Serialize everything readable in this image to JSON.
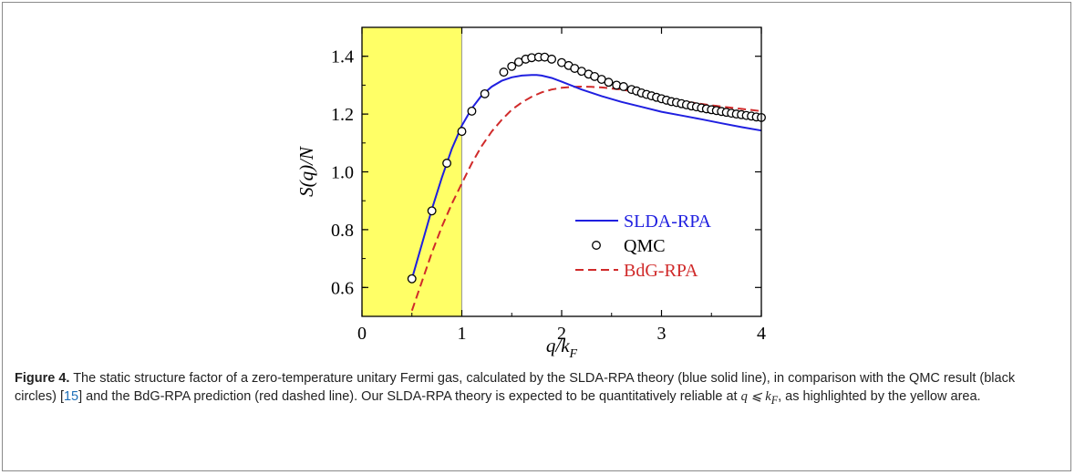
{
  "chart_data": {
    "type": "line",
    "xlabel_main": "q/k",
    "xlabel_sub": "F",
    "ylabel_pre": "S(q)",
    "ylabel_post": "/N",
    "xlim": [
      0,
      4
    ],
    "ylim": [
      0.5,
      1.5
    ],
    "xticks": [
      0,
      1,
      2,
      3,
      4
    ],
    "yticks": [
      0.6,
      0.8,
      1.0,
      1.2,
      1.4
    ],
    "ytick_labels": [
      "0.6",
      "0.8",
      "1.0",
      "1.2",
      "1.4"
    ],
    "highlight_region": {
      "x": [
        0,
        1
      ],
      "color": "#ffff66"
    },
    "legend_position": "right",
    "series": [
      {
        "name": "SLDA-RPA",
        "style": "solid",
        "color": "#1f1fe0",
        "x": [
          0.5,
          0.6,
          0.7,
          0.8,
          0.9,
          1.0,
          1.1,
          1.2,
          1.3,
          1.4,
          1.5,
          1.6,
          1.7,
          1.75,
          1.8,
          1.9,
          2.0,
          2.2,
          2.4,
          2.6,
          2.8,
          3.0,
          3.2,
          3.4,
          3.6,
          3.8,
          4.0
        ],
        "y": [
          0.63,
          0.75,
          0.87,
          0.98,
          1.08,
          1.16,
          1.22,
          1.265,
          1.295,
          1.315,
          1.327,
          1.333,
          1.335,
          1.335,
          1.333,
          1.325,
          1.312,
          1.285,
          1.262,
          1.242,
          1.225,
          1.208,
          1.195,
          1.182,
          1.168,
          1.155,
          1.143
        ]
      },
      {
        "name": "QMC",
        "style": "circle",
        "color": "#000000",
        "x": [
          0.5,
          0.7,
          0.85,
          1.0,
          1.1,
          1.23,
          1.42,
          1.5,
          1.57,
          1.64,
          1.7,
          1.77,
          1.83,
          1.9,
          2.0,
          2.07,
          2.13,
          2.2,
          2.27,
          2.33,
          2.4,
          2.47,
          2.55,
          2.62,
          2.7,
          2.75,
          2.8,
          2.85,
          2.9,
          2.95,
          3.0,
          3.05,
          3.1,
          3.15,
          3.2,
          3.25,
          3.3,
          3.35,
          3.4,
          3.45,
          3.5,
          3.55,
          3.6,
          3.65,
          3.7,
          3.75,
          3.8,
          3.85,
          3.9,
          3.95,
          4.0
        ],
        "y": [
          0.63,
          0.865,
          1.03,
          1.14,
          1.21,
          1.27,
          1.345,
          1.365,
          1.38,
          1.39,
          1.395,
          1.397,
          1.397,
          1.39,
          1.378,
          1.368,
          1.358,
          1.348,
          1.338,
          1.33,
          1.32,
          1.31,
          1.3,
          1.295,
          1.285,
          1.28,
          1.273,
          1.268,
          1.263,
          1.258,
          1.253,
          1.248,
          1.243,
          1.24,
          1.236,
          1.232,
          1.228,
          1.225,
          1.221,
          1.218,
          1.215,
          1.212,
          1.209,
          1.206,
          1.203,
          1.2,
          1.198,
          1.195,
          1.193,
          1.19,
          1.188
        ]
      },
      {
        "name": "BdG-RPA",
        "style": "dashed",
        "color": "#d02a2a",
        "x": [
          0.5,
          0.6,
          0.7,
          0.8,
          0.9,
          1.0,
          1.1,
          1.2,
          1.3,
          1.4,
          1.5,
          1.6,
          1.7,
          1.8,
          1.9,
          2.0,
          2.1,
          2.2,
          2.3,
          2.4,
          2.6,
          2.8,
          3.0,
          3.2,
          3.4,
          3.6,
          3.8,
          4.0
        ],
        "y": [
          0.52,
          0.62,
          0.72,
          0.81,
          0.89,
          0.96,
          1.03,
          1.09,
          1.14,
          1.18,
          1.215,
          1.24,
          1.26,
          1.275,
          1.285,
          1.291,
          1.294,
          1.295,
          1.294,
          1.292,
          1.285,
          1.272,
          1.259,
          1.245,
          1.235,
          1.226,
          1.218,
          1.21
        ]
      }
    ]
  },
  "caption": {
    "label": "Figure 4.",
    "text_1": " The static structure factor of a zero-temperature unitary Fermi gas, calculated by the SLDA-RPA theory (blue solid line), in comparison with the QMC result (black circles) [",
    "ref": "15",
    "text_2": "] and the BdG-RPA prediction (red dashed line). Our SLDA-RPA theory is expected to be quantitatively reliable at ",
    "math": "q ⩽ k",
    "math_sub": "F",
    "text_3": ", as highlighted by the yellow area."
  }
}
